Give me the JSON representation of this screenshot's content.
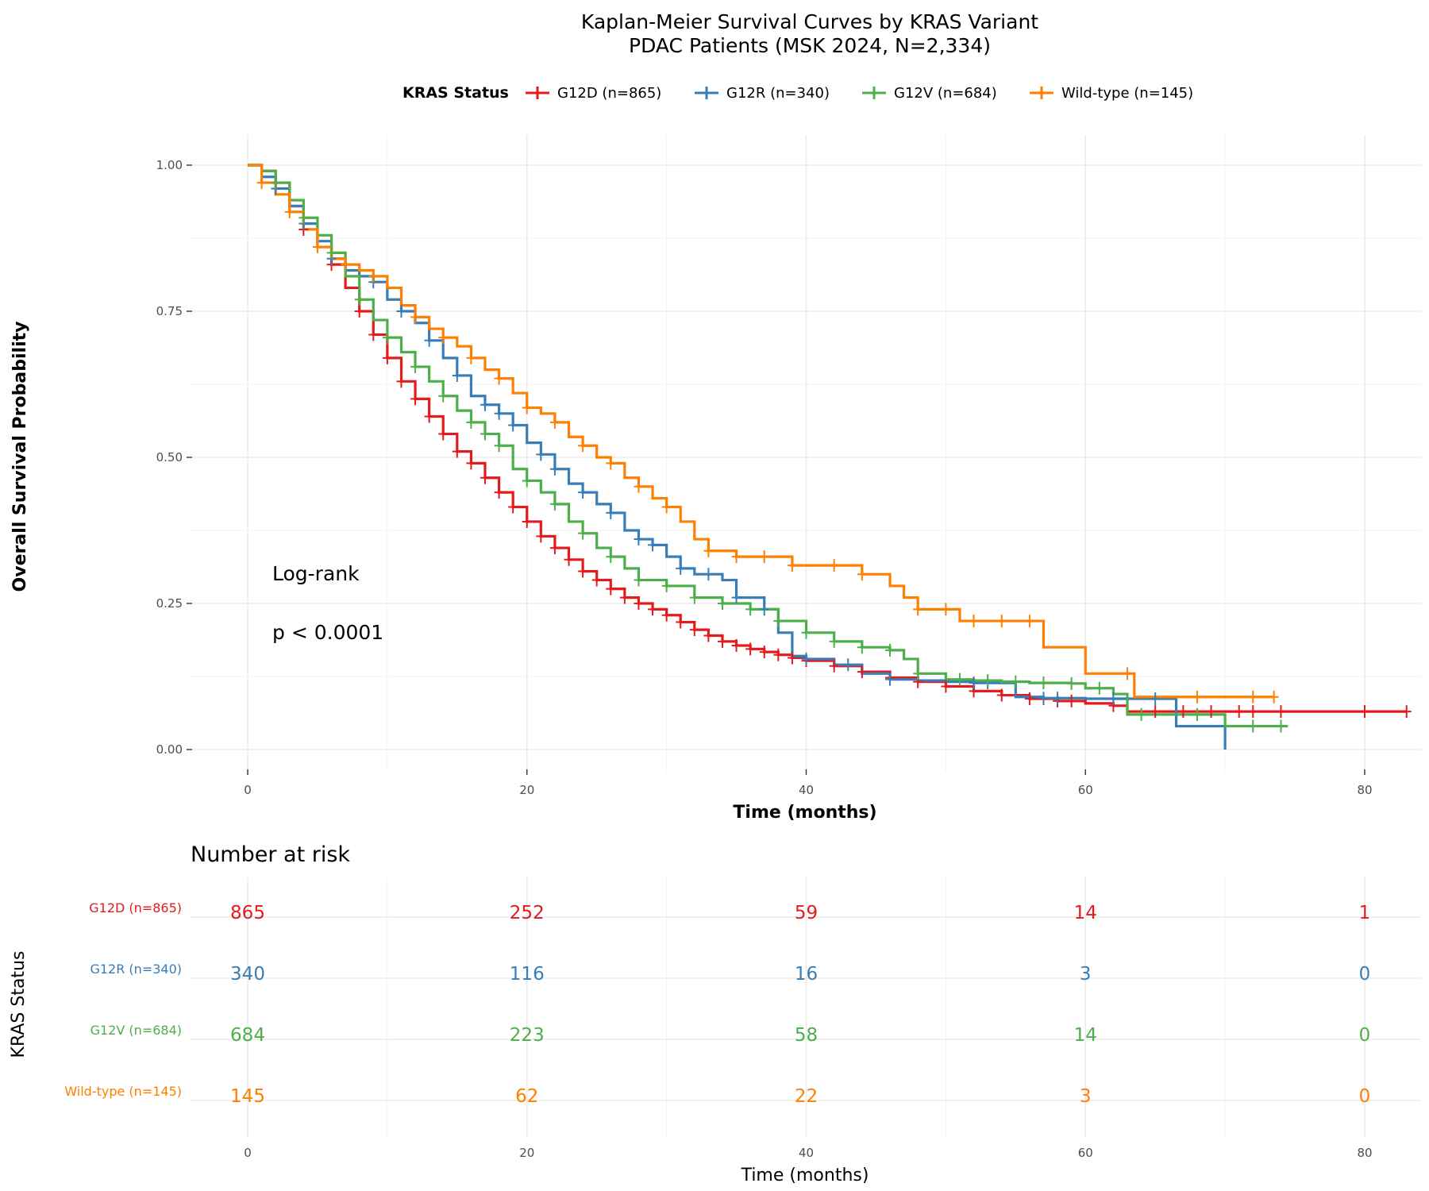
{
  "chart_data": {
    "type": "line",
    "subtype": "kaplan-meier",
    "title_line1": "Kaplan-Meier Survival Curves by KRAS Variant",
    "title_line2": "PDAC Patients (MSK 2024, N=2,334)",
    "xlabel": "Time (months)",
    "ylabel": "Overall Survival Probability",
    "xlim": [
      -5,
      83.5
    ],
    "ylim": [
      -0.04,
      1.04
    ],
    "xticks": [
      0,
      20,
      40,
      60,
      80
    ],
    "yticks": [
      0,
      0.25,
      0.5,
      0.75,
      1.0
    ],
    "ytick_labels": [
      "0.00",
      "0.25",
      "0.50",
      "0.75",
      "1.00"
    ],
    "grid": true,
    "legend_title": "KRAS Status",
    "legend_position": "top",
    "annotation_line1": "Log-rank",
    "annotation_line2": "p < 0.0001",
    "series": [
      {
        "name": "G12D (n=865)",
        "color": "#e41a1c",
        "points": [
          [
            0,
            1.0
          ],
          [
            1,
            0.99
          ],
          [
            2,
            0.97
          ],
          [
            3,
            0.93
          ],
          [
            4,
            0.89
          ],
          [
            5,
            0.86
          ],
          [
            6,
            0.83
          ],
          [
            7,
            0.79
          ],
          [
            8,
            0.75
          ],
          [
            9,
            0.71
          ],
          [
            10,
            0.67
          ],
          [
            11,
            0.63
          ],
          [
            12,
            0.6
          ],
          [
            13,
            0.57
          ],
          [
            14,
            0.54
          ],
          [
            15,
            0.51
          ],
          [
            16,
            0.49
          ],
          [
            17,
            0.465
          ],
          [
            18,
            0.44
          ],
          [
            19,
            0.415
          ],
          [
            20,
            0.39
          ],
          [
            21,
            0.365
          ],
          [
            22,
            0.345
          ],
          [
            23,
            0.325
          ],
          [
            24,
            0.305
          ],
          [
            25,
            0.29
          ],
          [
            26,
            0.275
          ],
          [
            27,
            0.26
          ],
          [
            28,
            0.25
          ],
          [
            29,
            0.24
          ],
          [
            30,
            0.23
          ],
          [
            31,
            0.218
          ],
          [
            32,
            0.205
          ],
          [
            33,
            0.195
          ],
          [
            34,
            0.185
          ],
          [
            35,
            0.178
          ],
          [
            36,
            0.172
          ],
          [
            37,
            0.167
          ],
          [
            38,
            0.162
          ],
          [
            39,
            0.157
          ],
          [
            40,
            0.152
          ],
          [
            42,
            0.143
          ],
          [
            44,
            0.133
          ],
          [
            46,
            0.123
          ],
          [
            48,
            0.116
          ],
          [
            50,
            0.108
          ],
          [
            52,
            0.1
          ],
          [
            54,
            0.093
          ],
          [
            56,
            0.087
          ],
          [
            58,
            0.083
          ],
          [
            60,
            0.079
          ],
          [
            62,
            0.075
          ],
          [
            63,
            0.065
          ],
          [
            66,
            0.065
          ],
          [
            70,
            0.065
          ],
          [
            75,
            0.065
          ],
          [
            83,
            0.065
          ]
        ],
        "censor_times": [
          2,
          4,
          6,
          8,
          9,
          10,
          11,
          12,
          13,
          14,
          15,
          16,
          17,
          18,
          19,
          20,
          21,
          22,
          23,
          24,
          25,
          26,
          27,
          28,
          29,
          30,
          31,
          32,
          33,
          34,
          35,
          36,
          37,
          38,
          39,
          40,
          42,
          44,
          46,
          48,
          50,
          52,
          54,
          56,
          57,
          58,
          59,
          62,
          65,
          67,
          69,
          71,
          72,
          74,
          80,
          83
        ]
      },
      {
        "name": "G12R (n=340)",
        "color": "#377eb8",
        "points": [
          [
            0,
            1.0
          ],
          [
            1,
            0.98
          ],
          [
            2,
            0.96
          ],
          [
            3,
            0.93
          ],
          [
            4,
            0.9
          ],
          [
            5,
            0.87
          ],
          [
            6,
            0.84
          ],
          [
            7,
            0.82
          ],
          [
            8,
            0.81
          ],
          [
            9,
            0.8
          ],
          [
            10,
            0.77
          ],
          [
            11,
            0.75
          ],
          [
            12,
            0.73
          ],
          [
            13,
            0.7
          ],
          [
            14,
            0.67
          ],
          [
            15,
            0.64
          ],
          [
            16,
            0.605
          ],
          [
            17,
            0.59
          ],
          [
            18,
            0.575
          ],
          [
            19,
            0.555
          ],
          [
            20,
            0.525
          ],
          [
            21,
            0.505
          ],
          [
            22,
            0.48
          ],
          [
            23,
            0.455
          ],
          [
            24,
            0.44
          ],
          [
            25,
            0.42
          ],
          [
            26,
            0.405
          ],
          [
            27,
            0.375
          ],
          [
            28,
            0.36
          ],
          [
            29,
            0.35
          ],
          [
            30,
            0.33
          ],
          [
            31,
            0.31
          ],
          [
            32,
            0.3
          ],
          [
            34,
            0.29
          ],
          [
            35,
            0.26
          ],
          [
            37,
            0.24
          ],
          [
            38,
            0.2
          ],
          [
            39,
            0.16
          ],
          [
            40,
            0.155
          ],
          [
            42,
            0.145
          ],
          [
            44,
            0.13
          ],
          [
            46,
            0.12
          ],
          [
            48,
            0.118
          ],
          [
            50,
            0.116
          ],
          [
            52,
            0.114
          ],
          [
            55,
            0.09
          ],
          [
            57,
            0.088
          ],
          [
            60,
            0.087
          ],
          [
            64,
            0.087
          ],
          [
            66.5,
            0.04
          ],
          [
            70,
            0.0
          ]
        ],
        "censor_times": [
          2,
          4,
          6,
          9,
          11,
          13,
          15,
          17,
          18,
          19,
          21,
          22,
          24,
          26,
          28,
          29,
          31,
          33,
          35,
          37,
          40,
          43,
          46,
          52,
          53,
          57,
          58,
          62,
          65
        ]
      },
      {
        "name": "G12V (n=684)",
        "color": "#4daf4a",
        "points": [
          [
            0,
            1.0
          ],
          [
            1,
            0.99
          ],
          [
            2,
            0.97
          ],
          [
            3,
            0.94
          ],
          [
            4,
            0.91
          ],
          [
            5,
            0.88
          ],
          [
            6,
            0.85
          ],
          [
            7,
            0.81
          ],
          [
            8,
            0.77
          ],
          [
            9,
            0.735
          ],
          [
            10,
            0.705
          ],
          [
            11,
            0.68
          ],
          [
            12,
            0.655
          ],
          [
            13,
            0.63
          ],
          [
            14,
            0.605
          ],
          [
            15,
            0.58
          ],
          [
            16,
            0.56
          ],
          [
            17,
            0.54
          ],
          [
            18,
            0.52
          ],
          [
            19,
            0.48
          ],
          [
            20,
            0.46
          ],
          [
            21,
            0.44
          ],
          [
            22,
            0.42
          ],
          [
            23,
            0.39
          ],
          [
            24,
            0.37
          ],
          [
            25,
            0.345
          ],
          [
            26,
            0.33
          ],
          [
            27,
            0.31
          ],
          [
            28,
            0.29
          ],
          [
            30,
            0.28
          ],
          [
            32,
            0.26
          ],
          [
            34,
            0.25
          ],
          [
            36,
            0.24
          ],
          [
            38,
            0.22
          ],
          [
            40,
            0.2
          ],
          [
            42,
            0.185
          ],
          [
            44,
            0.175
          ],
          [
            46,
            0.17
          ],
          [
            47,
            0.155
          ],
          [
            48,
            0.13
          ],
          [
            50,
            0.12
          ],
          [
            52,
            0.118
          ],
          [
            54,
            0.116
          ],
          [
            56,
            0.114
          ],
          [
            59,
            0.113
          ],
          [
            60,
            0.105
          ],
          [
            62,
            0.095
          ],
          [
            63,
            0.06
          ],
          [
            67,
            0.06
          ],
          [
            70,
            0.04
          ],
          [
            74.5,
            0.04
          ]
        ],
        "censor_times": [
          2,
          4,
          6,
          8,
          10,
          12,
          14,
          16,
          17,
          18,
          20,
          22,
          24,
          26,
          28,
          30,
          32,
          34,
          36,
          38,
          40,
          42,
          44,
          46,
          48,
          51,
          53,
          55,
          57,
          59,
          61,
          64,
          68,
          72,
          74
        ]
      },
      {
        "name": "Wild-type (n=145)",
        "color": "#ff7f00",
        "points": [
          [
            0,
            1.0
          ],
          [
            1,
            0.97
          ],
          [
            2,
            0.95
          ],
          [
            3,
            0.92
          ],
          [
            4,
            0.89
          ],
          [
            5,
            0.86
          ],
          [
            6,
            0.84
          ],
          [
            7,
            0.83
          ],
          [
            8,
            0.82
          ],
          [
            9,
            0.81
          ],
          [
            10,
            0.79
          ],
          [
            11,
            0.76
          ],
          [
            12,
            0.74
          ],
          [
            13,
            0.72
          ],
          [
            14,
            0.705
          ],
          [
            15,
            0.69
          ],
          [
            16,
            0.67
          ],
          [
            17,
            0.65
          ],
          [
            18,
            0.635
          ],
          [
            19,
            0.61
          ],
          [
            20,
            0.585
          ],
          [
            21,
            0.575
          ],
          [
            22,
            0.56
          ],
          [
            23,
            0.535
          ],
          [
            24,
            0.52
          ],
          [
            25,
            0.5
          ],
          [
            26,
            0.49
          ],
          [
            27,
            0.465
          ],
          [
            28,
            0.45
          ],
          [
            29,
            0.43
          ],
          [
            30,
            0.415
          ],
          [
            31,
            0.39
          ],
          [
            32,
            0.36
          ],
          [
            33,
            0.34
          ],
          [
            35,
            0.33
          ],
          [
            39,
            0.315
          ],
          [
            44,
            0.3
          ],
          [
            46,
            0.28
          ],
          [
            47,
            0.26
          ],
          [
            48,
            0.24
          ],
          [
            51,
            0.22
          ],
          [
            57,
            0.175
          ],
          [
            60,
            0.13
          ],
          [
            63.5,
            0.09
          ],
          [
            73.5,
            0.09
          ]
        ],
        "censor_times": [
          1,
          3,
          5,
          7,
          9,
          12,
          14,
          16,
          18,
          20,
          22,
          24,
          26,
          28,
          30,
          33,
          35,
          37,
          39,
          42,
          44,
          48,
          50,
          52,
          54,
          56,
          63,
          68,
          72,
          73.5
        ]
      }
    ],
    "risk_table": {
      "title": "Number at risk",
      "ylabel": "KRAS Status",
      "xlabel": "Time (months)",
      "times": [
        0,
        20,
        40,
        60,
        80
      ],
      "rows": [
        {
          "name": "G12D (n=865)",
          "color": "#e41a1c",
          "counts": [
            865,
            252,
            59,
            14,
            1
          ]
        },
        {
          "name": "G12R (n=340)",
          "color": "#377eb8",
          "counts": [
            340,
            116,
            16,
            3,
            0
          ]
        },
        {
          "name": "G12V (n=684)",
          "color": "#4daf4a",
          "counts": [
            684,
            223,
            58,
            14,
            0
          ]
        },
        {
          "name": "Wild-type (n=145)",
          "color": "#ff7f00",
          "counts": [
            145,
            62,
            22,
            3,
            0
          ]
        }
      ]
    }
  }
}
